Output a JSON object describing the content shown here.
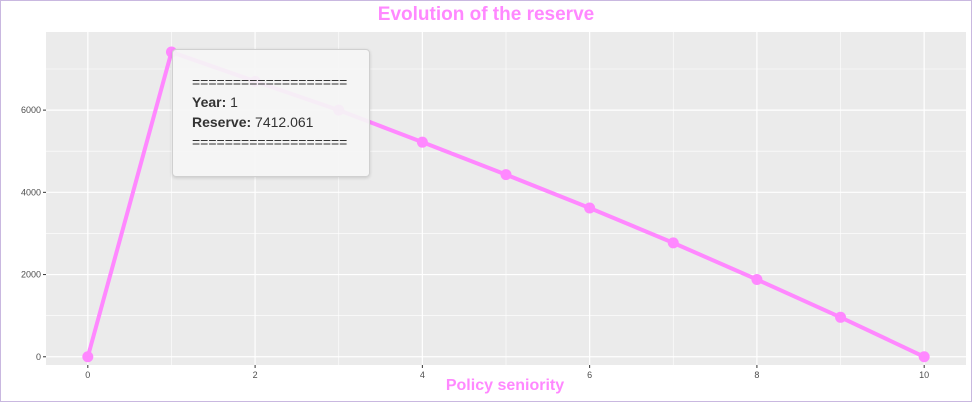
{
  "colors": {
    "accent": "#ff88ff",
    "panel": "#ebebeb",
    "grid": "#ffffff"
  },
  "chart_data": {
    "type": "line",
    "title": "Evolution of the reserve",
    "xlabel": "Policy seniority",
    "ylabel": "",
    "x": [
      0,
      1,
      2,
      3,
      4,
      5,
      6,
      7,
      8,
      9,
      10
    ],
    "series": [
      {
        "values": [
          0,
          7412.061,
          6700,
          6000,
          5220,
          4430,
          3620,
          2770,
          1880,
          960,
          0
        ]
      }
    ],
    "xlim": [
      -0.5,
      10.5
    ],
    "ylim": [
      -200,
      7900
    ],
    "x_ticks": [
      "0",
      "2",
      "4",
      "6",
      "8",
      "10"
    ],
    "y_ticks": [
      "0",
      "2000",
      "4000",
      "6000"
    ],
    "grid": true,
    "tooltip": {
      "separator": "===================",
      "year_label": "Year:",
      "year_value": "1",
      "reserve_label": "Reserve:",
      "reserve_value": "7412.061"
    }
  }
}
